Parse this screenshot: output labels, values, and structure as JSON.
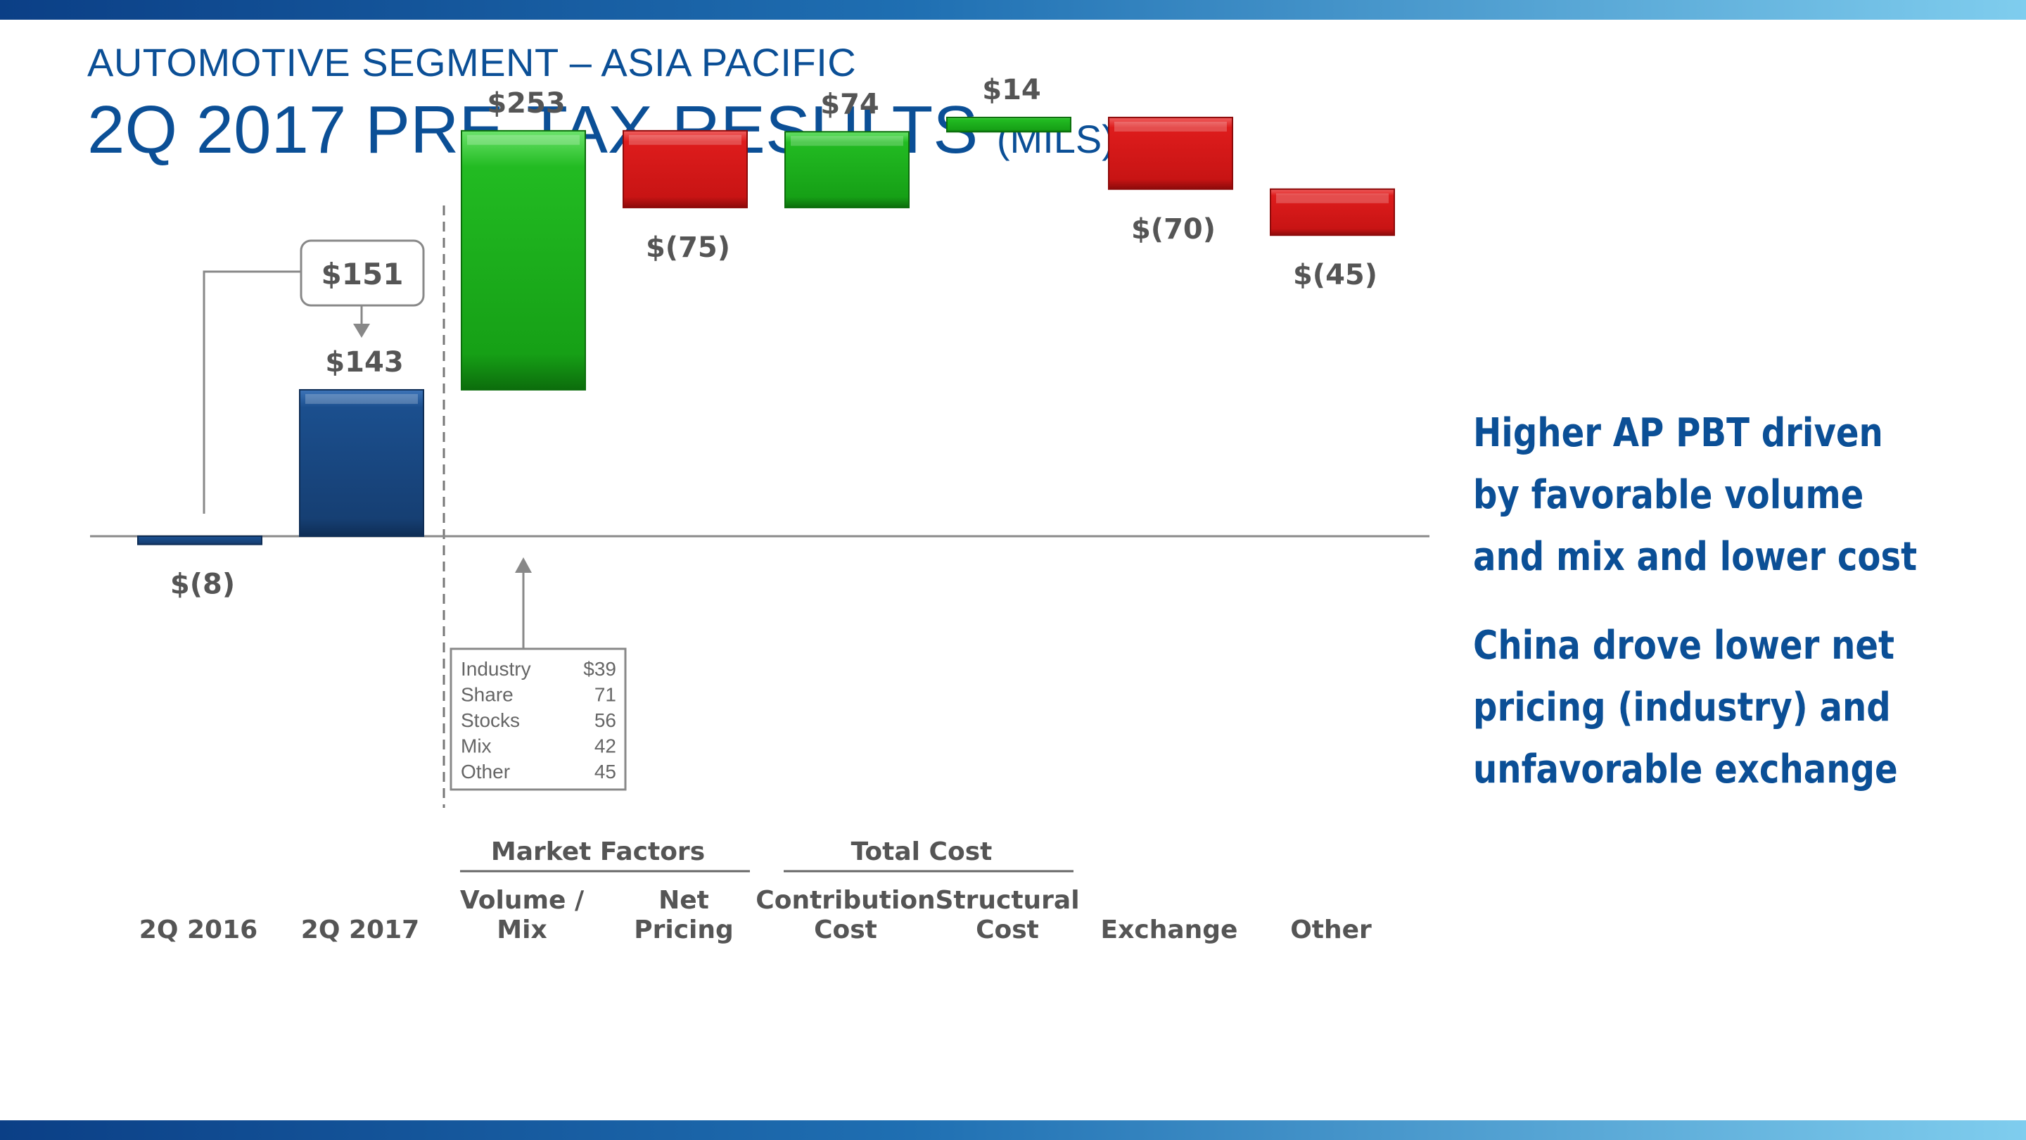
{
  "header": {
    "subtitle": "AUTOMOTIVE SEGMENT – ASIA PACIFIC",
    "title": "2Q 2017 PRE-TAX RESULTS",
    "title_unit": "(MILS)"
  },
  "colors": {
    "brand_blue": "#0b4f96",
    "bar_blue": "#1b4f8e",
    "bar_green": "#1fb01f",
    "bar_red": "#d21414",
    "text_gray": "#555555"
  },
  "chart_data": {
    "type": "bar",
    "subtype": "waterfall",
    "title": "2Q 2017 PRE-TAX RESULTS (MILS)",
    "unit": "$ millions",
    "categories": [
      "2Q 2016",
      "2Q 2017",
      "Volume / Mix",
      "Net Pricing",
      "Contribution Cost",
      "Structural Cost",
      "Exchange",
      "Other"
    ],
    "category_lines": [
      [
        "2Q 2016"
      ],
      [
        "2Q 2017"
      ],
      [
        "Volume /",
        "Mix"
      ],
      [
        "Net",
        "Pricing"
      ],
      [
        "Contribution",
        "Cost"
      ],
      [
        "Structural",
        "Cost"
      ],
      [
        "Exchange"
      ],
      [
        "Other"
      ]
    ],
    "values": [
      -8,
      143,
      253,
      -75,
      74,
      14,
      -70,
      -45
    ],
    "value_labels": [
      "$(8)",
      "$143",
      "$253",
      "$(75)",
      "$74",
      "$14",
      "$(70)",
      "$(45)"
    ],
    "kinds": [
      "total",
      "total",
      "increase",
      "decrease",
      "increase",
      "increase",
      "decrease",
      "decrease"
    ],
    "ylim": [
      -260,
      270
    ],
    "callout": {
      "label": "$151",
      "from_category": "2Q 2016",
      "to_category": "2Q 2017"
    },
    "groups": [
      {
        "label": "Market Factors",
        "categories": [
          "Volume / Mix",
          "Net Pricing"
        ]
      },
      {
        "label": "Total Cost",
        "categories": [
          "Contribution Cost",
          "Structural Cost"
        ]
      }
    ],
    "breakdown": {
      "for_category": "Volume / Mix",
      "rows": [
        {
          "label": "Industry",
          "value": "$39"
        },
        {
          "label": "Share",
          "value": "71"
        },
        {
          "label": "Stocks",
          "value": "56"
        },
        {
          "label": "Mix",
          "value": "42"
        },
        {
          "label": "Other",
          "value": "45"
        }
      ]
    }
  },
  "commentary": [
    "Higher AP PBT driven by favorable volume and mix and lower cost",
    "China drove lower net pricing (industry) and unfavorable exchange"
  ]
}
